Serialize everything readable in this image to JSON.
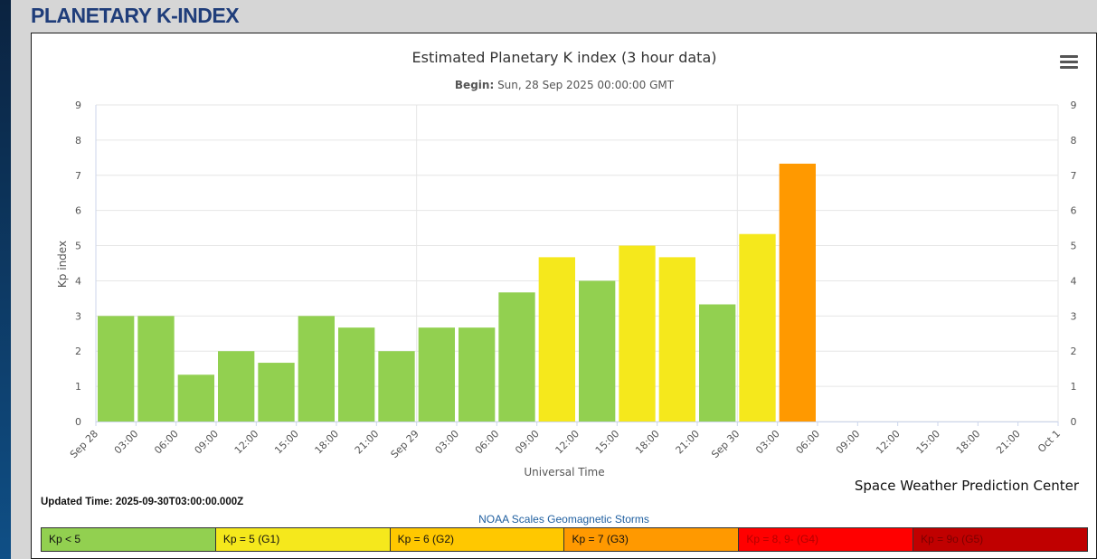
{
  "page": {
    "title": "PLANETARY K-INDEX"
  },
  "chart_data": {
    "type": "bar",
    "title": "Estimated Planetary K index (3 hour data)",
    "subtitle_label": "Begin:",
    "subtitle_value": " Sun, 28 Sep 2025 00:00:00 GMT",
    "xlabel": "Universal Time",
    "ylabel": "Kp index",
    "ylim": [
      0,
      9
    ],
    "y_ticks": [
      "0",
      "1",
      "2",
      "3",
      "4",
      "5",
      "6",
      "7",
      "8",
      "9"
    ],
    "x_ticks": [
      "Sep 28",
      "03:00",
      "06:00",
      "09:00",
      "12:00",
      "15:00",
      "18:00",
      "21:00",
      "Sep 29",
      "03:00",
      "06:00",
      "09:00",
      "12:00",
      "15:00",
      "18:00",
      "21:00",
      "Sep 30",
      "03:00",
      "06:00",
      "09:00",
      "12:00",
      "15:00",
      "18:00",
      "21:00",
      "Oct 1"
    ],
    "x_range_hours": [
      0,
      72
    ],
    "bar_width_hours": 3,
    "bars": [
      {
        "start_hour": 0,
        "value": 3.0,
        "color": "#92d050"
      },
      {
        "start_hour": 3,
        "value": 3.0,
        "color": "#92d050"
      },
      {
        "start_hour": 6,
        "value": 1.33,
        "color": "#92d050"
      },
      {
        "start_hour": 9,
        "value": 2.0,
        "color": "#92d050"
      },
      {
        "start_hour": 12,
        "value": 1.67,
        "color": "#92d050"
      },
      {
        "start_hour": 15,
        "value": 3.0,
        "color": "#92d050"
      },
      {
        "start_hour": 18,
        "value": 2.67,
        "color": "#92d050"
      },
      {
        "start_hour": 21,
        "value": 2.0,
        "color": "#92d050"
      },
      {
        "start_hour": 24,
        "value": 2.67,
        "color": "#92d050"
      },
      {
        "start_hour": 27,
        "value": 2.67,
        "color": "#92d050"
      },
      {
        "start_hour": 30,
        "value": 3.67,
        "color": "#92d050"
      },
      {
        "start_hour": 33,
        "value": 4.67,
        "color": "#f5e81c"
      },
      {
        "start_hour": 36,
        "value": 4.0,
        "color": "#92d050"
      },
      {
        "start_hour": 39,
        "value": 5.0,
        "color": "#f5e81c"
      },
      {
        "start_hour": 42,
        "value": 4.67,
        "color": "#f5e81c"
      },
      {
        "start_hour": 45,
        "value": 3.33,
        "color": "#92d050"
      },
      {
        "start_hour": 48,
        "value": 5.33,
        "color": "#f5e81c"
      },
      {
        "start_hour": 51,
        "value": 7.33,
        "color": "#ff9900"
      }
    ],
    "grid": true,
    "credit": "Space Weather Prediction Center"
  },
  "footer": {
    "updated": "Updated Time: 2025-09-30T03:00:00.000Z",
    "scale_title": "NOAA Scales Geomagnetic Storms",
    "legend": [
      {
        "label": "Kp < 5",
        "bg": "#92d050",
        "color": "#111111"
      },
      {
        "label": "Kp = 5 (G1)",
        "bg": "#f5e81c",
        "color": "#111111"
      },
      {
        "label": "Kp = 6 (G2)",
        "bg": "#ffc800",
        "color": "#111111"
      },
      {
        "label": "Kp = 7 (G3)",
        "bg": "#ff9900",
        "color": "#111111"
      },
      {
        "label": "Kp = 8, 9- (G4)",
        "bg": "#ff0000",
        "color": "#b30000"
      },
      {
        "label": "Kp = 9o (G5)",
        "bg": "#c00000",
        "color": "#7a0000"
      }
    ]
  }
}
